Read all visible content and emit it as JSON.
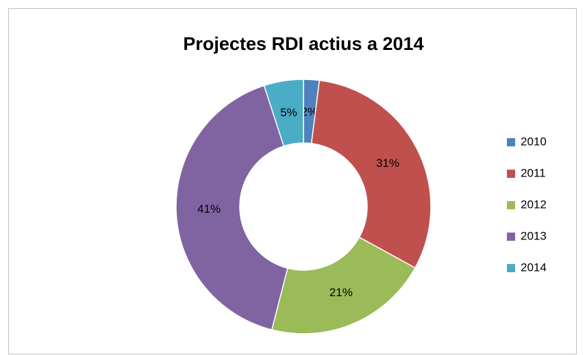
{
  "chart_data": {
    "type": "donut",
    "title": "Projectes RDI actius a 2014",
    "categories": [
      "2010",
      "2011",
      "2012",
      "2013",
      "2014"
    ],
    "values": [
      2,
      31,
      21,
      41,
      5
    ],
    "value_labels": [
      "2%",
      "31%",
      "21%",
      "41%",
      "5%"
    ],
    "colors": [
      "#4f81bd",
      "#c0504d",
      "#9bbb59",
      "#8064a2",
      "#4bacc6"
    ],
    "legend": "right"
  }
}
